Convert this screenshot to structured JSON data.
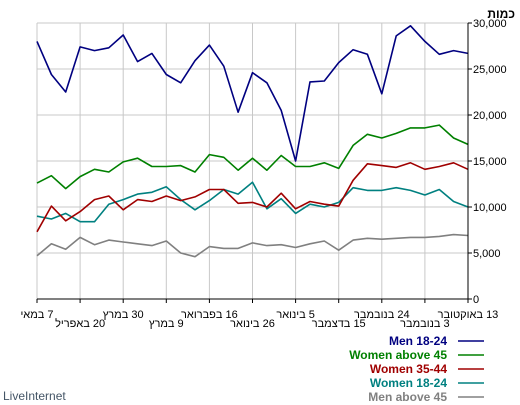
{
  "header": {
    "ylabel": "כמות"
  },
  "footer": {
    "brand": "LiveInternet"
  },
  "colors": {
    "men_18_24": "#000080",
    "women_above_45": "#008000",
    "women_35_44": "#a00000",
    "women_18_24": "#008080",
    "men_above_45": "#808080",
    "grid": "#c8c8c8",
    "axis": "#000000"
  },
  "chart_data": {
    "type": "line",
    "ylabel": "כמות",
    "ylim": [
      0,
      30000
    ],
    "yticks": [
      "0",
      "5,000",
      "10,000",
      "15,000",
      "20,000",
      "25,000",
      "30,000"
    ],
    "x_tick_labels": [
      "7 במאי",
      "20 באפריל",
      "30 במרץ",
      "9 במרץ",
      "16 בפברואר",
      "26 בינואר",
      "5 בינואר",
      "15 בדצמבר",
      "24 בנובמבר",
      "3 בנובמבר",
      "13 באוקטובר"
    ],
    "grid": true,
    "legend_position": "bottom-right",
    "series": [
      {
        "name": "Men 18-24",
        "color": "#000080",
        "values": [
          28000,
          24400,
          22500,
          27400,
          27000,
          27300,
          28700,
          25800,
          26700,
          24400,
          23500,
          25900,
          27600,
          25300,
          20300,
          24600,
          23500,
          20500,
          15000,
          23600,
          23700,
          25700,
          27100,
          26600,
          22300,
          28600,
          29700,
          28000,
          26600,
          27000,
          26700
        ]
      },
      {
        "name": "Women above 45",
        "color": "#008000",
        "values": [
          12600,
          13400,
          12000,
          13300,
          14100,
          13800,
          14900,
          15300,
          14400,
          14400,
          14500,
          13800,
          15700,
          15400,
          14000,
          15300,
          14000,
          15600,
          14400,
          14400,
          14800,
          14200,
          16700,
          17900,
          17500,
          18000,
          18600,
          18600,
          18900,
          17500,
          16800
        ]
      },
      {
        "name": "Women 35-44",
        "color": "#a00000",
        "values": [
          7300,
          10100,
          8500,
          9500,
          10800,
          11200,
          9700,
          10800,
          10600,
          11200,
          10700,
          11100,
          11900,
          11900,
          10400,
          10500,
          10000,
          11500,
          9800,
          10600,
          10300,
          10100,
          12900,
          14700,
          14500,
          14300,
          14800,
          14100,
          14400,
          14800,
          14100
        ]
      },
      {
        "name": "Women 18-24",
        "color": "#008080",
        "values": [
          9000,
          8700,
          9300,
          8400,
          8400,
          10300,
          10800,
          11400,
          11600,
          12200,
          10800,
          9700,
          10700,
          11900,
          11400,
          12700,
          9800,
          10900,
          9300,
          10300,
          10000,
          10500,
          12100,
          11800,
          11800,
          12100,
          11800,
          11300,
          11900,
          10600,
          10000
        ]
      },
      {
        "name": "Men above 45",
        "color": "#808080",
        "values": [
          4700,
          6000,
          5400,
          6700,
          5900,
          6400,
          6200,
          6000,
          5800,
          6300,
          5000,
          4600,
          5700,
          5500,
          5500,
          6100,
          5800,
          5900,
          5600,
          6000,
          6300,
          5300,
          6400,
          6600,
          6500,
          6600,
          6700,
          6700,
          6800,
          7000,
          6900
        ]
      }
    ]
  }
}
